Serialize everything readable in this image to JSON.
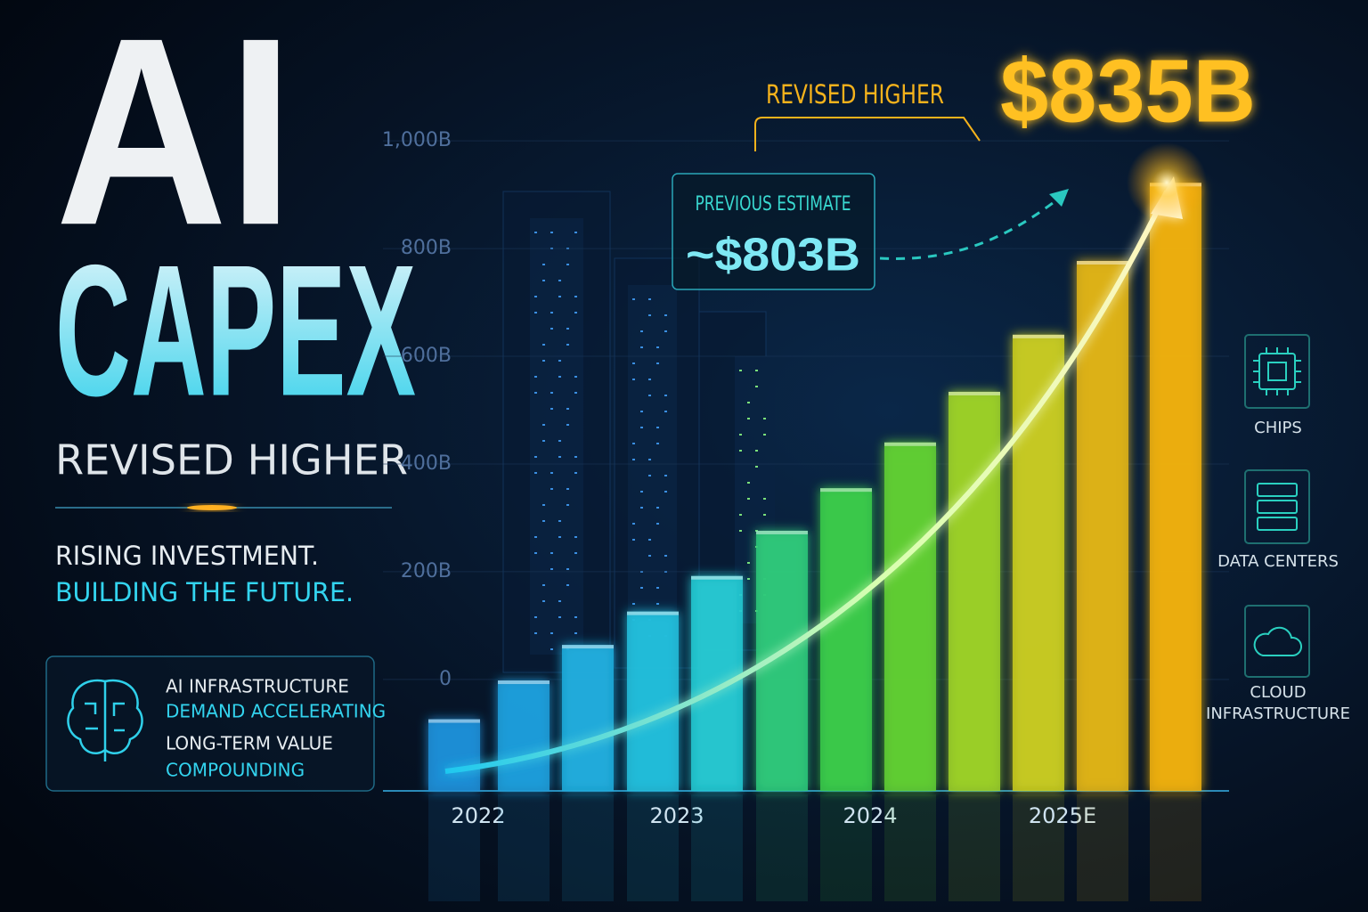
{
  "headline": {
    "line1": "AI",
    "line2": "CAPEX",
    "subtitle": "REVISED HIGHER"
  },
  "tagline": [
    "RISING INVESTMENT.",
    "BUILDING THE FUTURE."
  ],
  "info_box": [
    "AI INFRASTRUCTURE",
    "DEMAND ACCELERATING",
    "LONG-TERM VALUE",
    "COMPOUNDING"
  ],
  "icons": [
    {
      "lines": [
        "CHIPS"
      ]
    },
    {
      "lines": [
        "DATA CENTERS"
      ]
    },
    {
      "lines": [
        "CLOUD",
        "INFRASTRUCTURE"
      ]
    }
  ],
  "chart_data": {
    "type": "bar",
    "categories": [
      "2022",
      null,
      null,
      "2023",
      null,
      null,
      "2024",
      null,
      null,
      "2025E",
      null,
      null
    ],
    "values": [
      -74,
      -2,
      64,
      126,
      192,
      276,
      355,
      440,
      534,
      640,
      777,
      922
    ],
    "colors": [
      "#1f8fd8",
      "#1f9fdc",
      "#20aede",
      "#22bedc",
      "#25c9d2",
      "#2ec97a",
      "#3bcc4a",
      "#62d032",
      "#9ed228",
      "#c9cc20",
      "#e0b418",
      "#f0b010"
    ],
    "ylim": [
      -207,
      1030
    ],
    "yticks": [
      0,
      {
        "value": 200,
        "label": "200B"
      },
      {
        "value": 400,
        "label": "400B"
      },
      {
        "value": 600,
        "label": "600B"
      },
      {
        "value": 800,
        "label": "800B"
      },
      {
        "value": 1000,
        "label": "1,000B"
      }
    ],
    "grid": true,
    "annotations": {
      "revised_label": "REVISED HIGHER",
      "revised_value": "$835B",
      "previous_label": "PREVIOUS ESTIMATE",
      "previous_value": "~$803B"
    }
  }
}
